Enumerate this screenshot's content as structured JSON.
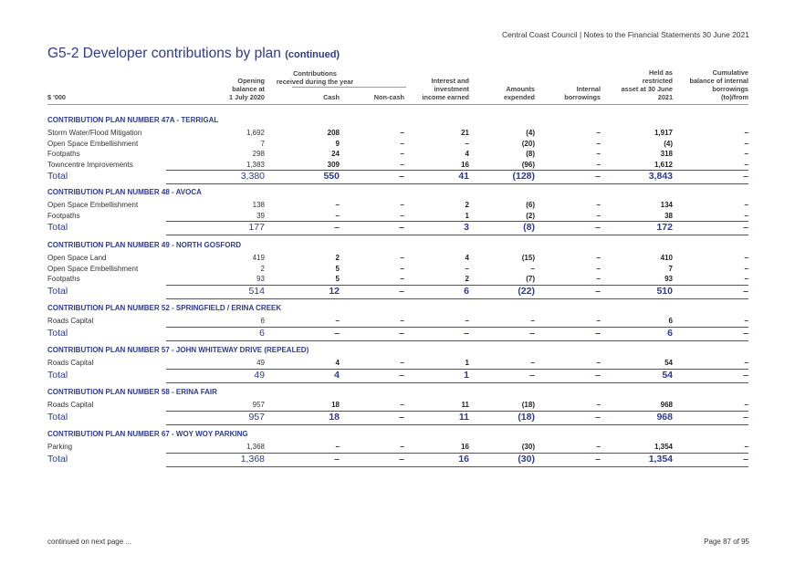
{
  "header": {
    "text": "Central Coast Council | Notes to the Financial Statements 30 June 2021"
  },
  "title": {
    "main": "G5-2   Developer contributions by plan",
    "sub": "(continued)"
  },
  "columns": {
    "unit": "$ '000",
    "opening": [
      "Opening",
      "balance at",
      "1 July 2020"
    ],
    "contributions_group": [
      "Contributions",
      "received during the year"
    ],
    "cash": "Cash",
    "noncash": "Non-cash",
    "interest": [
      "Interest and",
      "investment",
      "income earned"
    ],
    "amounts": [
      "Amounts",
      "expended"
    ],
    "internal": [
      "Internal",
      "borrowings"
    ],
    "held": [
      "Held as",
      "restricted",
      "asset at 30 June",
      "2021"
    ],
    "cumulative": [
      "Cumulative",
      "balance of internal",
      "borrowings",
      "(to)/from"
    ]
  },
  "sections": [
    {
      "heading": "CONTRIBUTION PLAN NUMBER 47A - TERRIGAL",
      "rows": [
        {
          "label": "Storm Water/Flood Mitigation",
          "values": [
            "1,692",
            "208",
            "–",
            "21",
            "(4)",
            "–",
            "1,917",
            "–"
          ]
        },
        {
          "label": "Open Space Embellishment",
          "values": [
            "7",
            "9",
            "–",
            "–",
            "(20)",
            "–",
            "(4)",
            "–"
          ]
        },
        {
          "label": "Footpaths",
          "values": [
            "298",
            "24",
            "–",
            "4",
            "(8)",
            "–",
            "318",
            "–"
          ]
        },
        {
          "label": "Towncentre Improvements",
          "values": [
            "1,383",
            "309",
            "–",
            "16",
            "(96)",
            "–",
            "1,612",
            "–"
          ]
        }
      ],
      "total": {
        "label": "Total",
        "values": [
          "3,380",
          "550",
          "–",
          "41",
          "(128)",
          "–",
          "3,843",
          "–"
        ]
      }
    },
    {
      "heading": "CONTRIBUTION PLAN NUMBER 48 - AVOCA",
      "rows": [
        {
          "label": "Open Space Embellishment",
          "values": [
            "138",
            "–",
            "–",
            "2",
            "(6)",
            "–",
            "134",
            "–"
          ]
        },
        {
          "label": "Footpaths",
          "values": [
            "39",
            "–",
            "–",
            "1",
            "(2)",
            "–",
            "38",
            "–"
          ]
        }
      ],
      "total": {
        "label": "Total",
        "values": [
          "177",
          "–",
          "–",
          "3",
          "(8)",
          "–",
          "172",
          "–"
        ]
      }
    },
    {
      "heading": "CONTRIBUTION PLAN NUMBER 49 - NORTH GOSFORD",
      "rows": [
        {
          "label": "Open Space Land",
          "values": [
            "419",
            "2",
            "–",
            "4",
            "(15)",
            "–",
            "410",
            "–"
          ]
        },
        {
          "label": "Open Space Embellishment",
          "values": [
            "2",
            "5",
            "–",
            "–",
            "–",
            "–",
            "7",
            "–"
          ]
        },
        {
          "label": "Footpaths",
          "values": [
            "93",
            "5",
            "–",
            "2",
            "(7)",
            "–",
            "93",
            "–"
          ]
        }
      ],
      "total": {
        "label": "Total",
        "values": [
          "514",
          "12",
          "–",
          "6",
          "(22)",
          "–",
          "510",
          "–"
        ]
      }
    },
    {
      "heading": "CONTRIBUTION PLAN NUMBER 52 - SPRINGFIELD / ERINA CREEK",
      "rows": [
        {
          "label": "Roads Capital",
          "values": [
            "6",
            "–",
            "–",
            "–",
            "–",
            "–",
            "6",
            "–"
          ]
        }
      ],
      "total": {
        "label": "Total",
        "values": [
          "6",
          "–",
          "–",
          "–",
          "–",
          "–",
          "6",
          "–"
        ]
      }
    },
    {
      "heading": "CONTRIBUTION PLAN NUMBER 57 - JOHN WHITEWAY DRIVE (REPEALED)",
      "rows": [
        {
          "label": "Roads Capital",
          "values": [
            "49",
            "4",
            "–",
            "1",
            "–",
            "–",
            "54",
            "–"
          ]
        }
      ],
      "total": {
        "label": "Total",
        "values": [
          "49",
          "4",
          "–",
          "1",
          "–",
          "–",
          "54",
          "–"
        ]
      }
    },
    {
      "heading": "CONTRIBUTION PLAN NUMBER 58 - ERINA FAIR",
      "rows": [
        {
          "label": "Roads Capital",
          "values": [
            "957",
            "18",
            "–",
            "11",
            "(18)",
            "–",
            "968",
            "–"
          ]
        }
      ],
      "total": {
        "label": "Total",
        "values": [
          "957",
          "18",
          "–",
          "11",
          "(18)",
          "–",
          "968",
          "–"
        ]
      }
    },
    {
      "heading": "CONTRIBUTION PLAN NUMBER 67 - WOY WOY PARKING",
      "rows": [
        {
          "label": "Parking",
          "values": [
            "1,368",
            "–",
            "–",
            "16",
            "(30)",
            "–",
            "1,354",
            "–"
          ]
        }
      ],
      "total": {
        "label": "Total",
        "values": [
          "1,368",
          "–",
          "–",
          "16",
          "(30)",
          "–",
          "1,354",
          "–"
        ]
      }
    }
  ],
  "footer": {
    "left": "continued on next page ...",
    "right": "Page 87 of 95"
  }
}
